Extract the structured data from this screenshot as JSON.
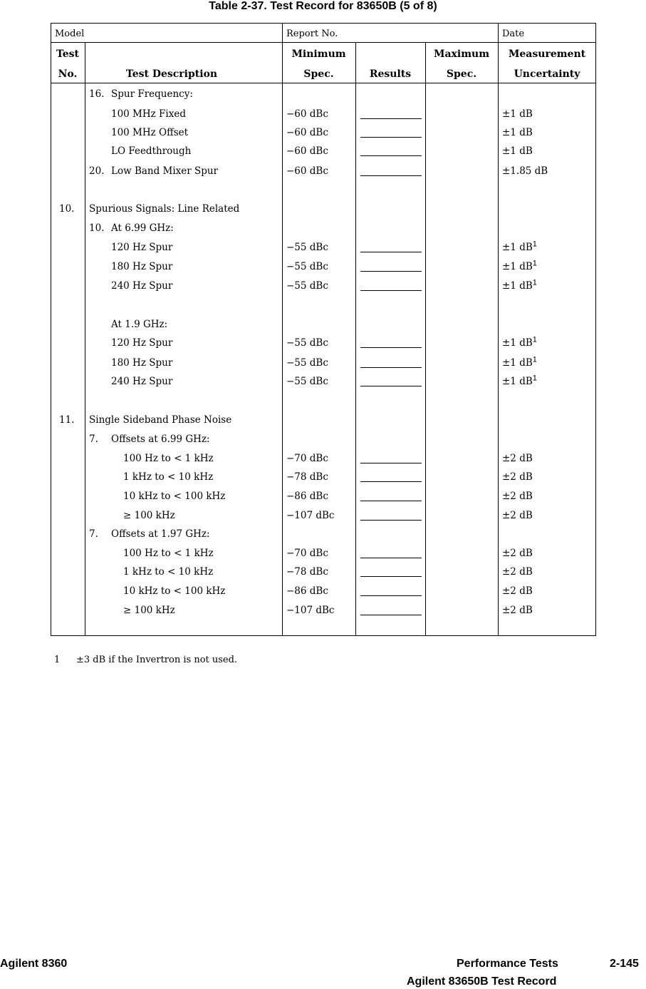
{
  "title": "Table 2-37. Test Record for 83650B (5 of 8)",
  "header": {
    "model": "Model",
    "report_no": "Report No.",
    "date": "Date",
    "test_no": [
      "Test",
      "No."
    ],
    "description": "Test Description",
    "min_spec": [
      "Minimum",
      "Spec."
    ],
    "results": "Results",
    "max_spec": [
      "Maximum",
      "Spec."
    ],
    "uncertainty": [
      "Measurement",
      "Uncertainty"
    ]
  },
  "rows": [
    {
      "no": "",
      "num": "16.",
      "desc": "Spur Frequency:",
      "indent": 1,
      "min": "",
      "blank": false,
      "unc": "",
      "sup": ""
    },
    {
      "no": "",
      "num": "",
      "desc": "100 MHz Fixed",
      "indent": 2,
      "min": "−60 dBc",
      "blank": true,
      "unc": "±1 dB",
      "sup": ""
    },
    {
      "no": "",
      "num": "",
      "desc": "100 MHz Offset",
      "indent": 2,
      "min": "−60 dBc",
      "blank": true,
      "unc": "±1 dB",
      "sup": ""
    },
    {
      "no": "",
      "num": "",
      "desc": "LO Feedthrough",
      "indent": 2,
      "min": "−60 dBc",
      "blank": true,
      "unc": "±1 dB",
      "sup": ""
    },
    {
      "no": "",
      "num": "20.",
      "desc": "Low Band Mixer Spur",
      "indent": 1,
      "min": "−60 dBc",
      "blank": true,
      "unc": "±1.85 dB",
      "sup": ""
    },
    null,
    {
      "no": "10.",
      "num": "",
      "desc": "Spurious Signals: Line Related",
      "indent": 0,
      "min": "",
      "blank": false,
      "unc": "",
      "sup": ""
    },
    {
      "no": "",
      "num": "10.",
      "desc": "At 6.99 GHz:",
      "indent": 1,
      "min": "",
      "blank": false,
      "unc": "",
      "sup": ""
    },
    {
      "no": "",
      "num": "",
      "desc": "120 Hz Spur",
      "indent": 2,
      "min": "−55 dBc",
      "blank": true,
      "unc": "±1 dB",
      "sup": "1"
    },
    {
      "no": "",
      "num": "",
      "desc": "180 Hz Spur",
      "indent": 2,
      "min": "−55 dBc",
      "blank": true,
      "unc": "±1 dB",
      "sup": "1"
    },
    {
      "no": "",
      "num": "",
      "desc": "240 Hz Spur",
      "indent": 2,
      "min": "−55 dBc",
      "blank": true,
      "unc": "±1 dB",
      "sup": "1"
    },
    null,
    {
      "no": "",
      "num": "",
      "desc": "At 1.9 GHz:",
      "indent": 2,
      "min": "",
      "blank": false,
      "unc": "",
      "sup": ""
    },
    {
      "no": "",
      "num": "",
      "desc": "120 Hz Spur",
      "indent": 2,
      "min": "−55 dBc",
      "blank": true,
      "unc": "±1 dB",
      "sup": "1"
    },
    {
      "no": "",
      "num": "",
      "desc": "180 Hz Spur",
      "indent": 2,
      "min": "−55 dBc",
      "blank": true,
      "unc": "±1 dB",
      "sup": "1"
    },
    {
      "no": "",
      "num": "",
      "desc": "240 Hz Spur",
      "indent": 2,
      "min": "−55 dBc",
      "blank": true,
      "unc": "±1 dB",
      "sup": "1"
    },
    null,
    {
      "no": "11.",
      "num": "",
      "desc": "Single Sideband Phase Noise",
      "indent": 0,
      "min": "",
      "blank": false,
      "unc": "",
      "sup": ""
    },
    {
      "no": "",
      "num": "7.",
      "desc": "Offsets at 6.99 GHz:",
      "indent": 1,
      "min": "",
      "blank": false,
      "unc": "",
      "sup": ""
    },
    {
      "no": "",
      "num": "",
      "desc": "100 Hz to < 1 kHz",
      "indent": 3,
      "min": "−70 dBc",
      "blank": true,
      "unc": "±2 dB",
      "sup": ""
    },
    {
      "no": "",
      "num": "",
      "desc": "1 kHz to < 10 kHz",
      "indent": 3,
      "min": "−78 dBc",
      "blank": true,
      "unc": "±2 dB",
      "sup": ""
    },
    {
      "no": "",
      "num": "",
      "desc": "10 kHz to < 100 kHz",
      "indent": 3,
      "min": "−86 dBc",
      "blank": true,
      "unc": "±2 dB",
      "sup": ""
    },
    {
      "no": "",
      "num": "",
      "desc": "≥ 100 kHz",
      "indent": 3,
      "min": "−107 dBc",
      "blank": true,
      "unc": "±2 dB",
      "sup": ""
    },
    {
      "no": "",
      "num": "7.",
      "desc": "Offsets at 1.97 GHz:",
      "indent": 1,
      "min": "",
      "blank": false,
      "unc": "",
      "sup": ""
    },
    {
      "no": "",
      "num": "",
      "desc": "100 Hz to < 1 kHz",
      "indent": 3,
      "min": "−70 dBc",
      "blank": true,
      "unc": "±2 dB",
      "sup": ""
    },
    {
      "no": "",
      "num": "",
      "desc": "1 kHz to < 10 kHz",
      "indent": 3,
      "min": "−78 dBc",
      "blank": true,
      "unc": "±2 dB",
      "sup": ""
    },
    {
      "no": "",
      "num": "",
      "desc": "10 kHz to < 100 kHz",
      "indent": 3,
      "min": "−86 dBc",
      "blank": true,
      "unc": "±2 dB",
      "sup": ""
    },
    {
      "no": "",
      "num": "",
      "desc": "≥ 100 kHz",
      "indent": 3,
      "min": "−107 dBc",
      "blank": true,
      "unc": "±2 dB",
      "sup": ""
    }
  ],
  "footnote": {
    "mark": "1",
    "text": "±3 dB if the Invertron is not used."
  },
  "footer": {
    "left": "Agilent 8360",
    "right_section": "Performance Tests",
    "page": "2-145",
    "subtitle": "Agilent 83650B Test Record"
  }
}
